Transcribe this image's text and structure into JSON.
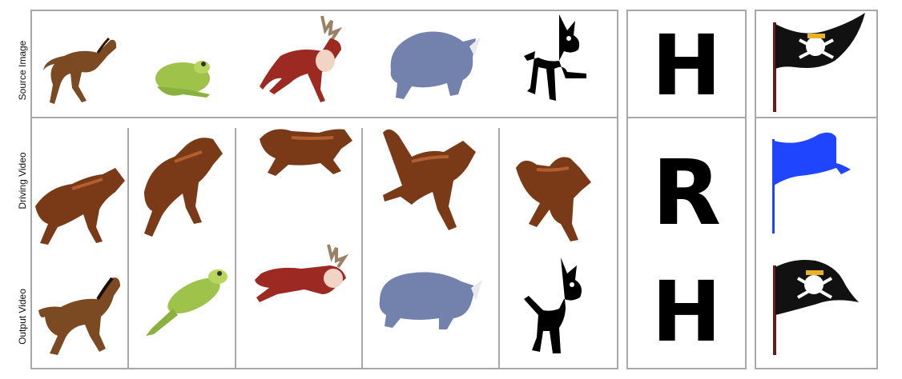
{
  "row_labels": {
    "source": "Source Image",
    "driving": "Driving Video",
    "output": "Output Video"
  },
  "letters": {
    "source": "H",
    "driving": "R",
    "output": "H"
  },
  "colors": {
    "border": "#a8a8a8",
    "wolf": "#7a3a17",
    "horse": "#7b4a22",
    "frog": "#9fc24a",
    "deer": "#9c2a22",
    "rhino": "#7282ad",
    "fawn": "#000000",
    "flag_black": "#111111",
    "flag_blue": "#1f45ff"
  },
  "icons": {
    "source_row": [
      "horse-figure",
      "frog-figure",
      "reindeer-figure",
      "rhino-figure",
      "fawn-figure"
    ],
    "driving_row": [
      "wolf-figure",
      "wolf-figure",
      "wolf-figure",
      "wolf-figure",
      "wolf-figure"
    ],
    "output_row": [
      "horse-figure",
      "frog-figure",
      "reindeer-figure",
      "rhino-figure",
      "fawn-figure"
    ],
    "flags": [
      "pirate-flag-icon",
      "blue-flag-icon",
      "pirate-flag-icon"
    ]
  }
}
